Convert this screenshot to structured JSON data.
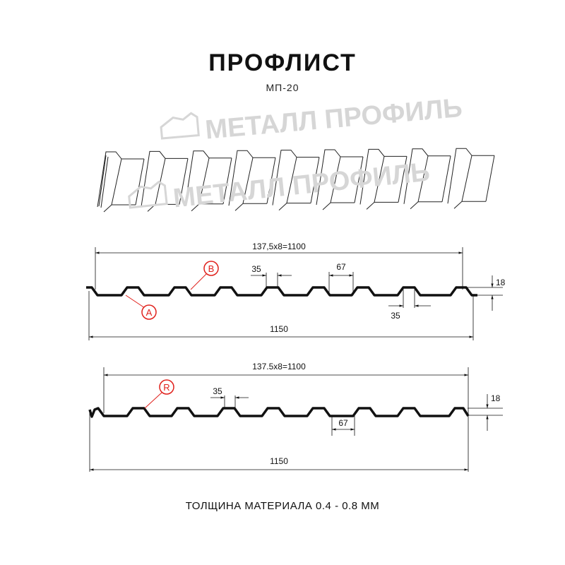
{
  "title": "ПРОФЛИСТ",
  "subtitle": "МП-20",
  "footer": "ТОЛЩИНА МАТЕРИАЛА 0.4 - 0.8 ММ",
  "watermark": "МЕТАЛЛ ПРОФИЛЬ",
  "colors": {
    "profile": "#111111",
    "callout": "#e0201b",
    "watermark": "#d6d6d6"
  },
  "profile_1": {
    "pitch_label": "137,5x8=1100",
    "width_label": "1150",
    "height_label": "18",
    "top_width_label": "35",
    "bottom_width_label": "35",
    "valley_label": "67",
    "callouts": [
      "A",
      "B"
    ]
  },
  "profile_2": {
    "pitch_label": "137.5x8=1100",
    "width_label": "1150",
    "height_label": "18",
    "top_width_label": "35",
    "valley_label": "67",
    "callouts": [
      "R"
    ]
  }
}
